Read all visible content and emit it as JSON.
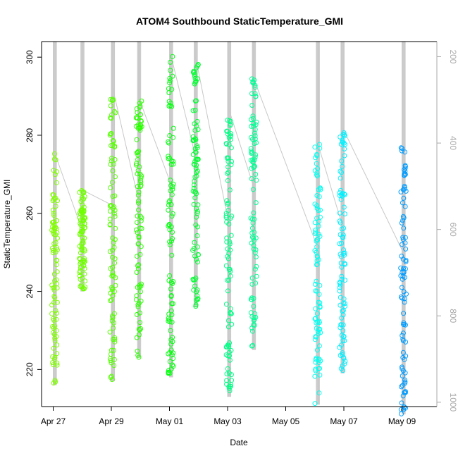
{
  "chart_data": {
    "type": "scatter",
    "title": "ATOM4 Southbound StaticTemperature_GMI",
    "xlabel": "Date",
    "ylabel": "StaticTemperature_GMI",
    "x_ticks": [
      "Apr 27",
      "Apr 29",
      "May 01",
      "May 03",
      "May 05",
      "May 07",
      "May 09"
    ],
    "y_ticks": [
      220,
      240,
      260,
      280,
      300
    ],
    "y2_ticks": [
      200,
      400,
      600,
      800,
      1000
    ],
    "xlim_days": [
      26.6,
      40.2
    ],
    "ylim": [
      210.5,
      304
    ],
    "y2lim": [
      1010,
      165
    ],
    "y2_reversed": true,
    "grid": false,
    "legend": "none",
    "profile_color": "#c8c8c8",
    "axis_color": "#000000",
    "secondary_axis_color": "#a9a9a9",
    "profiles": [
      {
        "day": 27.05,
        "tmin": 216,
        "tmax": 275.5,
        "color": "#80ff00"
      },
      {
        "day": 28.0,
        "tmin": 240,
        "tmax": 266,
        "color": "#70ff00"
      },
      {
        "day": 29.05,
        "tmin": 217,
        "tmax": 292,
        "color": "#55ff00"
      },
      {
        "day": 29.95,
        "tmin": 223,
        "tmax": 289.5,
        "color": "#2aff00"
      },
      {
        "day": 31.05,
        "tmin": 218,
        "tmax": 300.5,
        "color": "#05ff10"
      },
      {
        "day": 31.9,
        "tmin": 236,
        "tmax": 300,
        "color": "#00ff30"
      },
      {
        "day": 33.05,
        "tmin": 213,
        "tmax": 286.5,
        "color": "#00ff85"
      },
      {
        "day": 33.9,
        "tmin": 225,
        "tmax": 294.5,
        "color": "#00ff95"
      },
      {
        "day": 36.1,
        "tmin": 211,
        "tmax": 278,
        "color": "#00fff0"
      },
      {
        "day": 36.95,
        "tmin": 219,
        "tmax": 282,
        "color": "#00f0ff"
      },
      {
        "day": 39.05,
        "tmin": 208.5,
        "tmax": 277.5,
        "color": "#009cff"
      }
    ]
  }
}
